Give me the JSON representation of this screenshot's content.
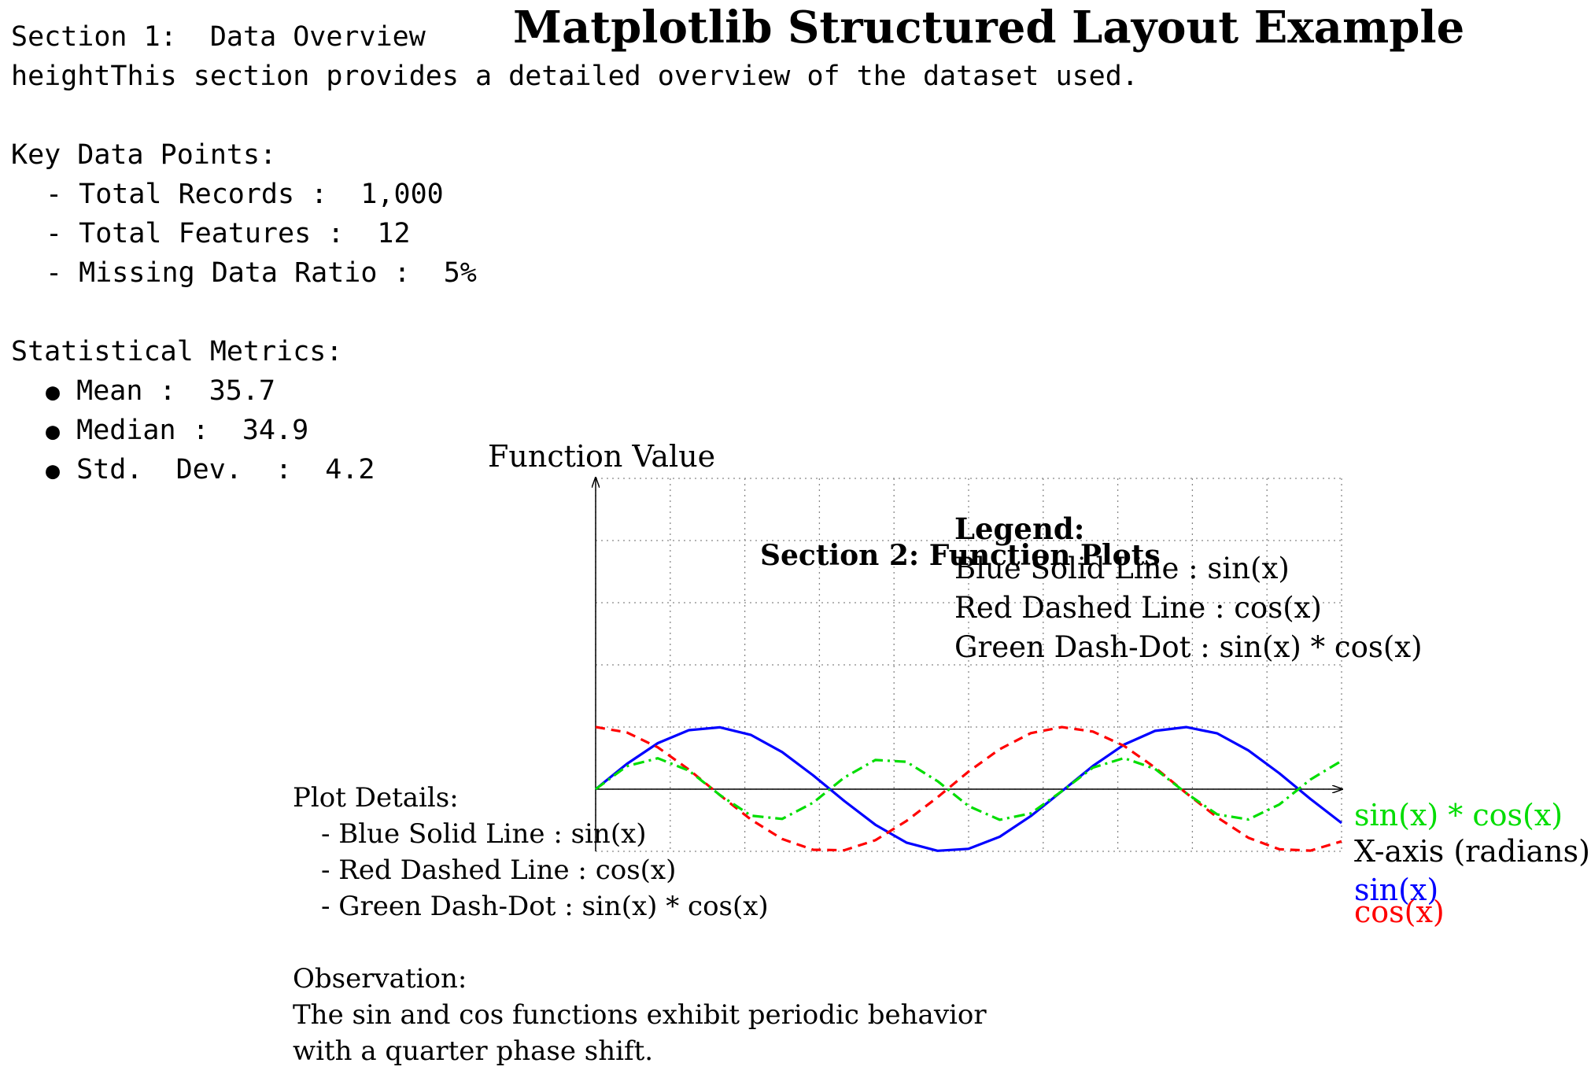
{
  "title": "Matplotlib Structured Layout Example",
  "section1": {
    "heading": "Section 1:  Data Overview",
    "intro": "heightThis section provides a detailed overview of the dataset used.",
    "key_points_heading": "Key Data Points:",
    "key_points": [
      "- Total Records :  1,000",
      "- Total Features :  12",
      "- Missing Data Ratio :  5%"
    ],
    "metrics_heading": "Statistical Metrics:",
    "metrics": [
      "Mean :  35.7",
      "Median :  34.9",
      "Std.  Dev.  :  4.2"
    ]
  },
  "section2": {
    "heading": "Section 2:  Function Plots"
  },
  "legend": {
    "heading": "Legend:",
    "items": [
      "Blue Solid Line : sin(x)",
      "Red Dashed Line : cos(x)",
      "Green Dash-Dot : sin(x) * cos(x)"
    ]
  },
  "plot_details": {
    "heading": "Plot Details:",
    "items": [
      "- Blue Solid Line : sin(x)",
      "- Red Dashed Line : cos(x)",
      "- Green Dash-Dot : sin(x) * cos(x)"
    ]
  },
  "observation": {
    "heading": "Observation:",
    "lines": [
      "The sin and cos functions exhibit periodic behavior",
      "with a quarter phase shift."
    ]
  },
  "chart_data": {
    "type": "line",
    "xlabel": "X-axis (radians)",
    "ylabel": "Function Value",
    "xlim": [
      0,
      10
    ],
    "ylim": [
      -1,
      5
    ],
    "grid": true,
    "x": [
      0,
      0.4167,
      0.8333,
      1.25,
      1.6667,
      2.0833,
      2.5,
      2.9167,
      3.3333,
      3.75,
      4.1667,
      4.5833,
      5.0,
      5.4167,
      5.8333,
      6.25,
      6.6667,
      7.0833,
      7.5,
      7.9167,
      8.3333,
      8.75,
      9.1667,
      9.5833,
      10.0
    ],
    "series": [
      {
        "name": "sin(x)",
        "color": "#0000ff",
        "style": "solid",
        "values": [
          0.0,
          0.405,
          0.74,
          0.949,
          0.995,
          0.872,
          0.598,
          0.222,
          -0.19,
          -0.572,
          -0.859,
          -0.991,
          -0.959,
          -0.766,
          -0.433,
          -0.033,
          0.374,
          0.716,
          0.938,
          0.999,
          0.897,
          0.624,
          0.254,
          -0.158,
          -0.544
        ]
      },
      {
        "name": "cos(x)",
        "color": "#ff0000",
        "style": "dashed",
        "values": [
          1.0,
          0.914,
          0.674,
          0.315,
          -0.096,
          -0.49,
          -0.801,
          -0.975,
          -0.982,
          -0.821,
          -0.512,
          -0.13,
          0.284,
          0.643,
          0.901,
          0.999,
          0.927,
          0.698,
          0.347,
          -0.063,
          -0.453,
          -0.781,
          -0.967,
          -0.988,
          -0.839
        ]
      },
      {
        "name": "sin(x) * cos(x)",
        "color": "#00dd00",
        "style": "dashdot",
        "values": [
          0.0,
          0.37,
          0.498,
          0.299,
          -0.095,
          -0.427,
          -0.479,
          -0.216,
          0.187,
          0.47,
          0.44,
          0.129,
          -0.272,
          -0.492,
          -0.39,
          -0.033,
          0.347,
          0.5,
          0.326,
          -0.063,
          -0.406,
          -0.487,
          -0.246,
          0.156,
          0.456
        ]
      }
    ]
  }
}
